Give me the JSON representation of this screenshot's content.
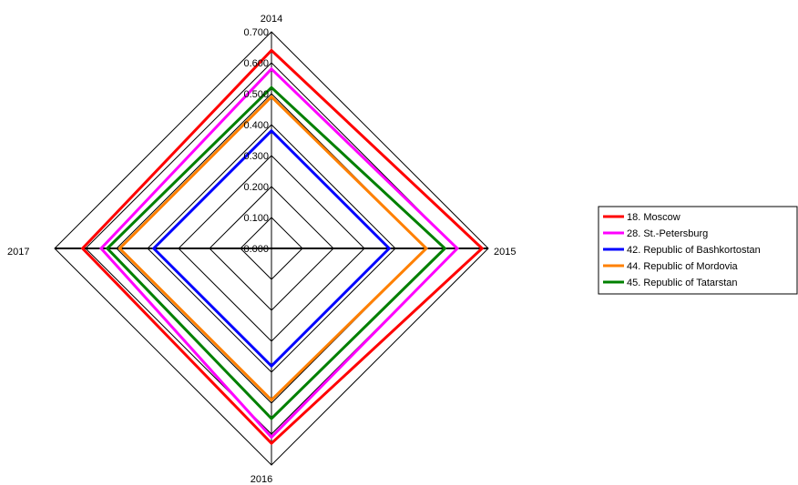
{
  "chart_data": {
    "type": "radar",
    "title": "",
    "axes": [
      "2014",
      "2015",
      "2016",
      "2017"
    ],
    "ticks": [
      "0.000",
      "0.100",
      "0.200",
      "0.300",
      "0.400",
      "0.500",
      "0.600",
      "0.700"
    ],
    "rlim": [
      0,
      0.7
    ],
    "grid": true,
    "legend_position": "right",
    "series": [
      {
        "name": "18. Moscow",
        "color": "#ff0000",
        "values": [
          0.64,
          0.68,
          0.63,
          0.61
        ]
      },
      {
        "name": "28. St.-Petersburg",
        "color": "#ff00ff",
        "values": [
          0.58,
          0.6,
          0.61,
          0.55
        ]
      },
      {
        "name": "42. Republic of Bashkortostan",
        "color": "#0000ff",
        "values": [
          0.38,
          0.38,
          0.38,
          0.38
        ]
      },
      {
        "name": "44. Republic of Mordovia",
        "color": "#ff8000",
        "values": [
          0.49,
          0.5,
          0.49,
          0.49
        ]
      },
      {
        "name": "45. Republic of Tatarstan",
        "color": "#008000",
        "values": [
          0.52,
          0.56,
          0.55,
          0.53
        ]
      }
    ]
  }
}
